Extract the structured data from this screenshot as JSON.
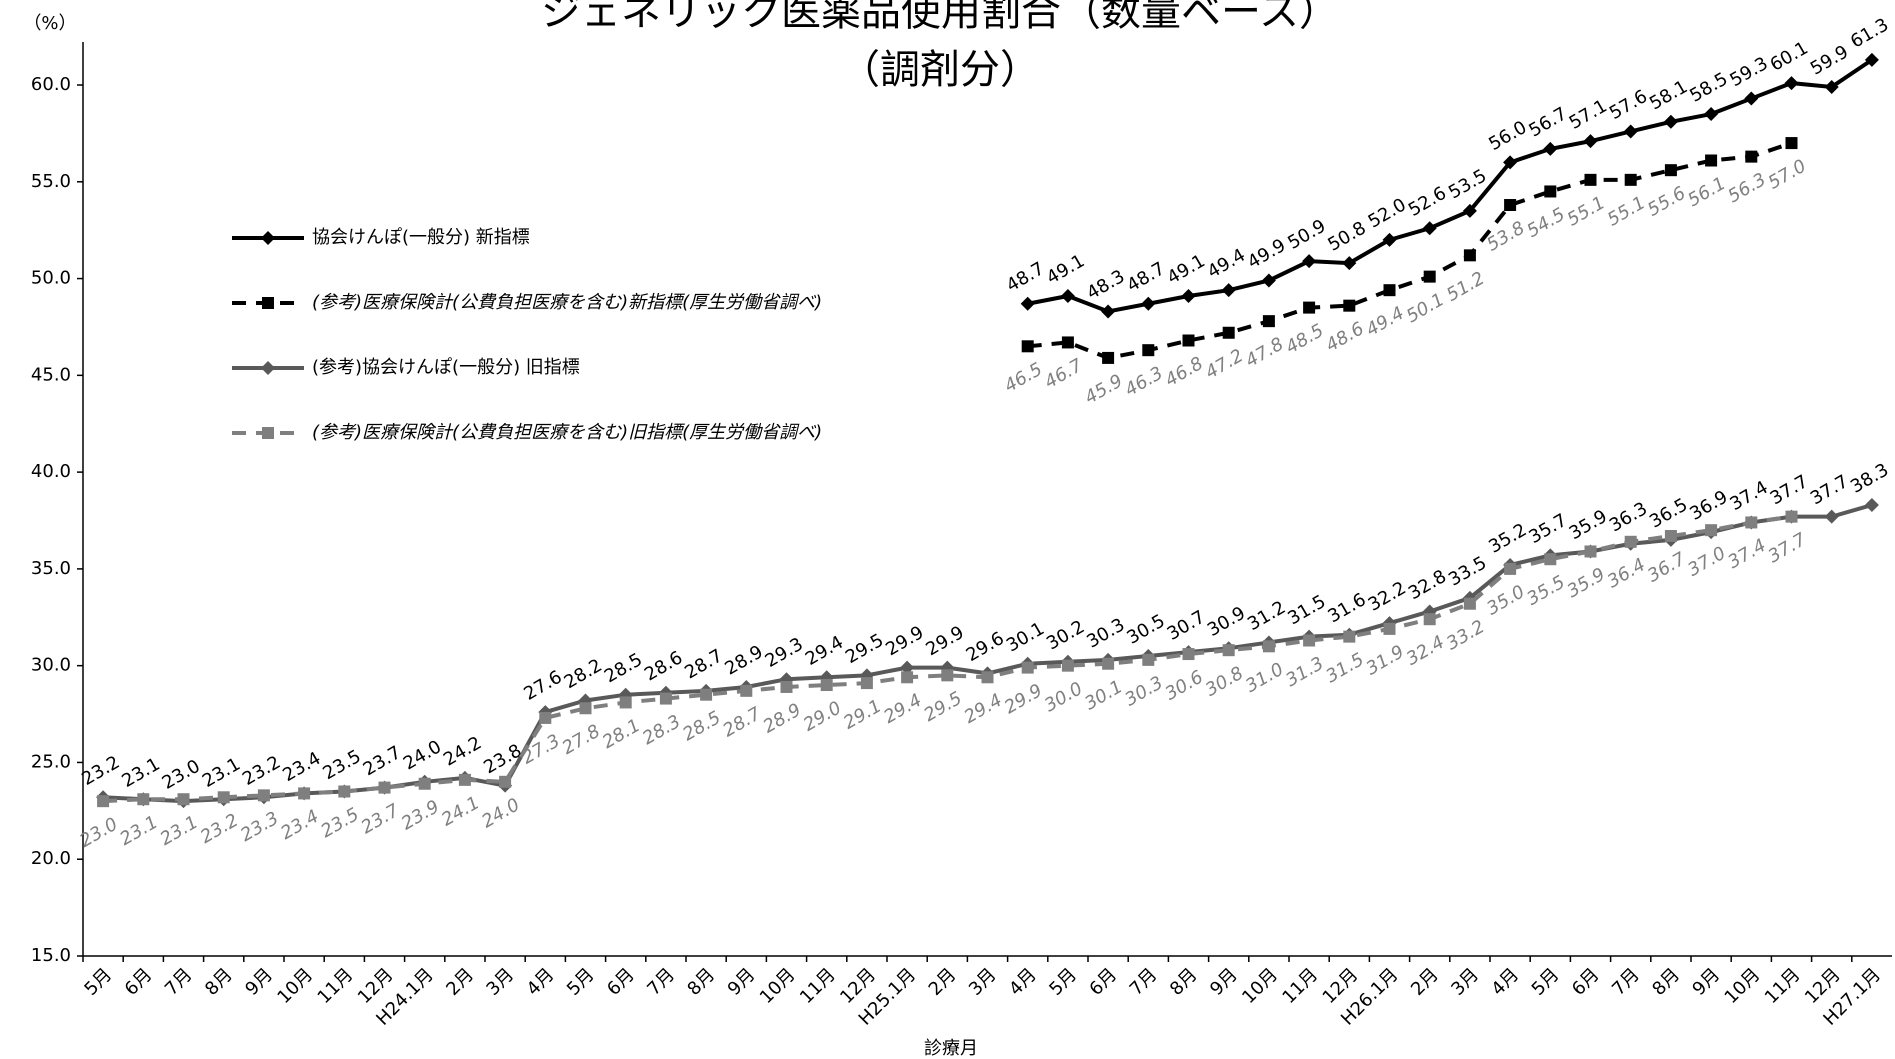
{
  "chart_data": {
    "type": "line",
    "title": "ジェネリック医薬品使用割合（数量ベース）",
    "subtitle": "（調剤分）",
    "y_unit": "（%）",
    "x_label": "診療月",
    "categories": [
      "5月",
      "6月",
      "7月",
      "8月",
      "9月",
      "10月",
      "11月",
      "12月",
      "H24.1月",
      "2月",
      "3月",
      "4月",
      "5月",
      "6月",
      "7月",
      "8月",
      "9月",
      "10月",
      "11月",
      "12月",
      "H25.1月",
      "2月",
      "3月",
      "4月",
      "5月",
      "6月",
      "7月",
      "8月",
      "9月",
      "10月",
      "11月",
      "12月",
      "H26.1月",
      "2月",
      "3月",
      "4月",
      "5月",
      "6月",
      "7月",
      "8月",
      "9月",
      "10月",
      "11月",
      "12月",
      "H27.1月"
    ],
    "ylim": [
      15,
      62
    ],
    "yticks": [
      {
        "value": 15,
        "label": "15.0"
      },
      {
        "value": 20,
        "label": "20.0"
      },
      {
        "value": 25,
        "label": "25.0"
      },
      {
        "value": 30,
        "label": "30.0"
      },
      {
        "value": 35,
        "label": "35.0"
      },
      {
        "value": 40,
        "label": "40.0"
      },
      {
        "value": 45,
        "label": "45.0"
      },
      {
        "value": 50,
        "label": "50.0"
      },
      {
        "value": 55,
        "label": "55.0"
      },
      {
        "value": 60,
        "label": "60.0"
      }
    ],
    "legend": "upper left",
    "series": [
      {
        "name": "協会けんぽ(一般分) 新指標",
        "color": "#000000",
        "label_color": "#000000",
        "linestyle": "solid",
        "marker": "diamond",
        "values": [
          null,
          null,
          null,
          null,
          null,
          null,
          null,
          null,
          null,
          null,
          null,
          null,
          null,
          null,
          null,
          null,
          null,
          null,
          null,
          null,
          null,
          null,
          null,
          48.7,
          49.1,
          48.3,
          48.7,
          49.1,
          49.4,
          49.9,
          50.9,
          50.8,
          52.0,
          52.6,
          53.5,
          56.0,
          56.7,
          57.1,
          57.6,
          58.1,
          58.5,
          59.3,
          60.1,
          59.9,
          61.3
        ],
        "value_labels": [
          null,
          null,
          null,
          null,
          null,
          null,
          null,
          null,
          null,
          null,
          null,
          null,
          null,
          null,
          null,
          null,
          null,
          null,
          null,
          null,
          null,
          null,
          null,
          "48.7",
          "49.1",
          "48.3",
          "48.7",
          "49.1",
          "49.4",
          "49.9",
          "50.9",
          "50.8",
          "52.0",
          "52.6",
          "53.5",
          "56.0",
          "56.7",
          "57.1",
          "57.6",
          "58.1",
          "58.5",
          "59.3",
          "60.1",
          "59.9",
          "61.3"
        ]
      },
      {
        "name": "(参考)医療保険計(公費負担医療を含む)新指標(厚生労働省調べ)",
        "color": "#000000",
        "label_color": "#808080",
        "linestyle": "dashed",
        "marker": "square",
        "values": [
          null,
          null,
          null,
          null,
          null,
          null,
          null,
          null,
          null,
          null,
          null,
          null,
          null,
          null,
          null,
          null,
          null,
          null,
          null,
          null,
          null,
          null,
          null,
          46.5,
          46.7,
          45.9,
          46.3,
          46.8,
          47.2,
          47.8,
          48.5,
          48.6,
          49.4,
          50.1,
          51.2,
          53.8,
          54.5,
          55.1,
          55.1,
          55.6,
          56.1,
          56.3,
          57.0,
          null,
          null
        ],
        "value_labels": [
          null,
          null,
          null,
          null,
          null,
          null,
          null,
          null,
          null,
          null,
          null,
          null,
          null,
          null,
          null,
          null,
          null,
          null,
          null,
          null,
          null,
          null,
          null,
          "46.5",
          "46.7",
          "45.9",
          "46.3",
          "46.8",
          "47.2",
          "47.8",
          "48.5",
          "48.6",
          "49.4",
          "50.1",
          "51.2",
          "53.8",
          "54.5",
          "55.1",
          "55.1",
          "55.6",
          "56.1",
          "56.3",
          "57.0",
          null,
          null
        ]
      },
      {
        "name": "(参考)協会けんぽ(一般分) 旧指標",
        "color": "#595959",
        "label_color": "#000000",
        "linestyle": "solid",
        "marker": "diamond",
        "values": [
          23.2,
          23.1,
          23.0,
          23.1,
          23.2,
          23.4,
          23.5,
          23.7,
          24.0,
          24.2,
          23.8,
          27.6,
          28.2,
          28.5,
          28.6,
          28.7,
          28.9,
          29.3,
          29.4,
          29.5,
          29.9,
          29.9,
          29.6,
          30.1,
          30.2,
          30.3,
          30.5,
          30.7,
          30.9,
          31.2,
          31.5,
          31.6,
          32.2,
          32.8,
          33.5,
          35.2,
          35.7,
          35.9,
          36.3,
          36.5,
          36.9,
          37.4,
          37.7,
          37.7,
          38.3
        ],
        "value_labels": [
          "23.2",
          "23.1",
          "23.0",
          "23.1",
          "23.2",
          "23.4",
          "23.5",
          "23.7",
          "24.0",
          "24.2",
          "23.8",
          "27.6",
          "28.2",
          "28.5",
          "28.6",
          "28.7",
          "28.9",
          "29.3",
          "29.4",
          "29.5",
          "29.9",
          "29.9",
          "29.6",
          "30.1",
          "30.2",
          "30.3",
          "30.5",
          "30.7",
          "30.9",
          "31.2",
          "31.5",
          "31.6",
          "32.2",
          "32.8",
          "33.5",
          "35.2",
          "35.7",
          "35.9",
          "36.3",
          "36.5",
          "36.9",
          "37.4",
          "37.7",
          "37.7",
          "38.3"
        ]
      },
      {
        "name": "(参考)医療保険計(公費負担医療を含む)旧指標(厚生労働省調べ)",
        "color": "#7f7f7f",
        "label_color": "#808080",
        "linestyle": "dashed",
        "marker": "square",
        "values": [
          23.0,
          23.1,
          23.1,
          23.2,
          23.3,
          23.4,
          23.5,
          23.7,
          23.9,
          24.1,
          24.0,
          27.3,
          27.8,
          28.1,
          28.3,
          28.5,
          28.7,
          28.9,
          29.0,
          29.1,
          29.4,
          29.5,
          29.4,
          29.9,
          30.0,
          30.1,
          30.3,
          30.6,
          30.8,
          31.0,
          31.3,
          31.5,
          31.9,
          32.4,
          33.2,
          35.0,
          35.5,
          35.9,
          36.4,
          36.7,
          37.0,
          37.4,
          37.7,
          null,
          null
        ],
        "value_labels": [
          "23.0",
          "23.1",
          "23.1",
          "23.2",
          "23.3",
          "23.4",
          "23.5",
          "23.7",
          "23.9",
          "24.1",
          "24.0",
          "27.3",
          "27.8",
          "28.1",
          "28.3",
          "28.5",
          "28.7",
          "28.9",
          "29.0",
          "29.1",
          "29.4",
          "29.5",
          "29.4",
          "29.9",
          "30.0",
          "30.1",
          "30.3",
          "30.6",
          "30.8",
          "31.0",
          "31.3",
          "31.5",
          "31.9",
          "32.4",
          "33.2",
          "35.0",
          "35.5",
          "35.9",
          "36.4",
          "36.7",
          "37.0",
          "37.4",
          "37.7",
          null,
          null
        ]
      }
    ]
  }
}
